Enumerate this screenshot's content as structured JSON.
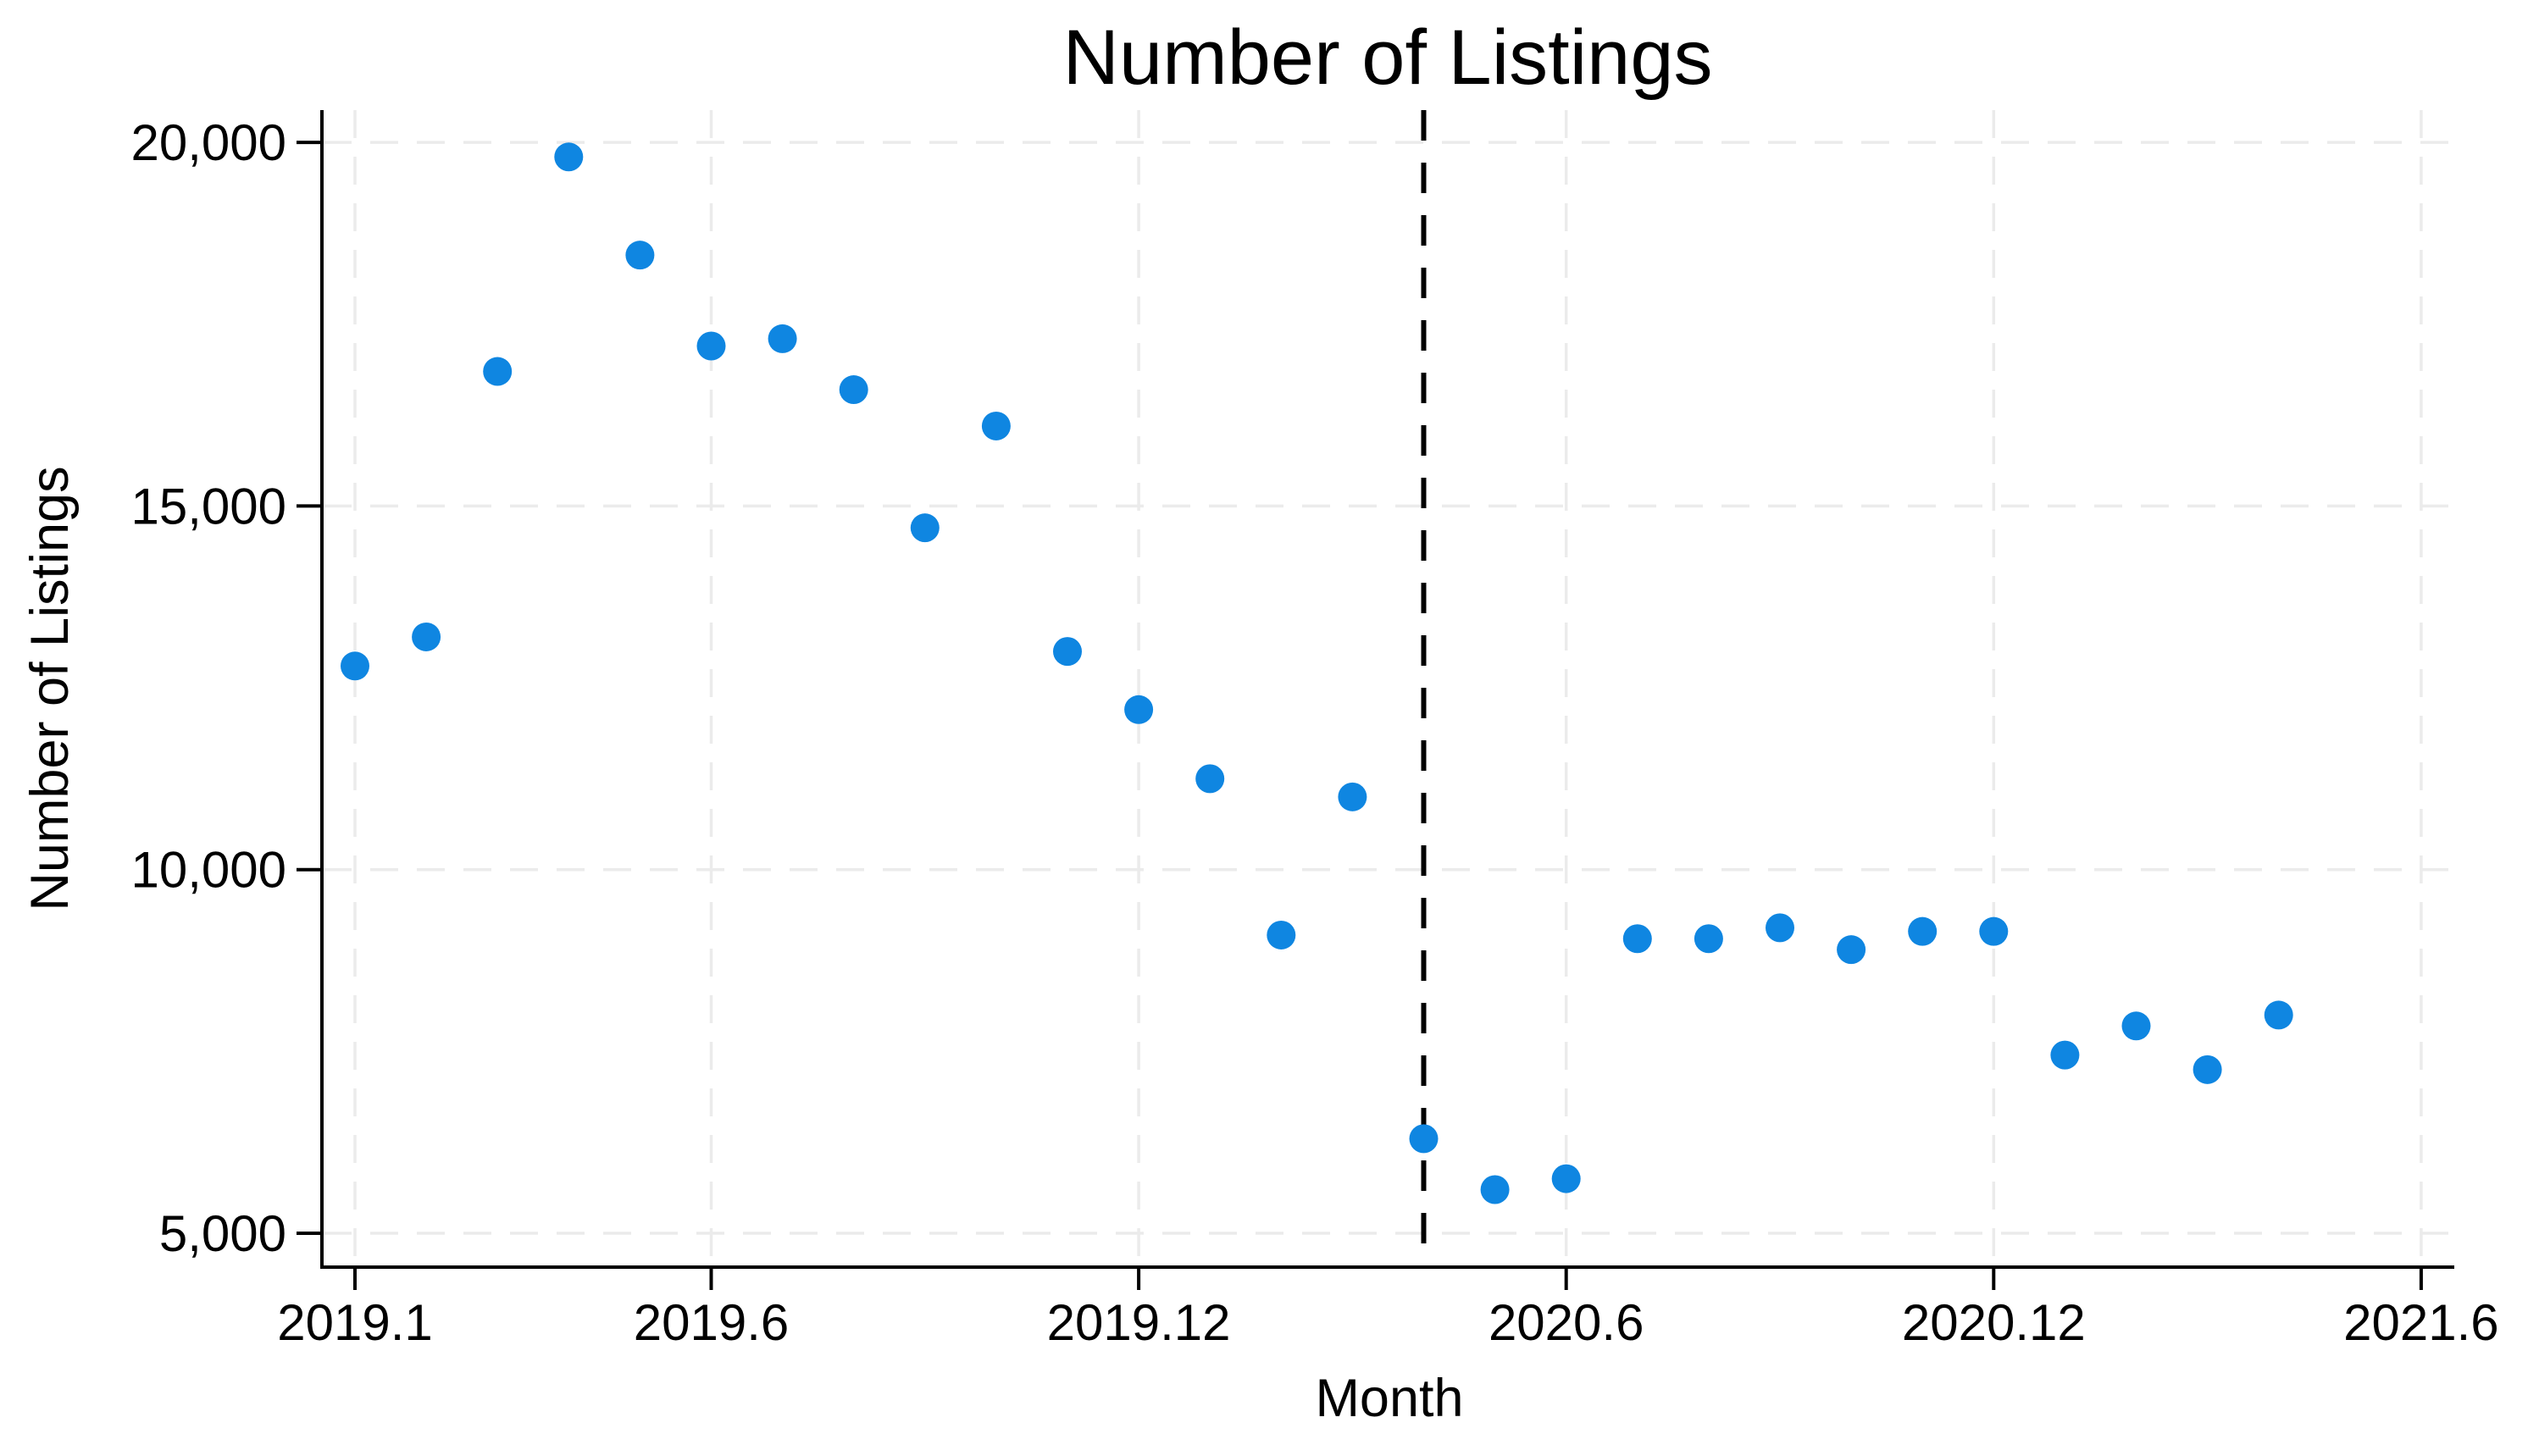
{
  "chart_data": {
    "type": "scatter",
    "title": "Number of Listings",
    "xlabel": "Month",
    "ylabel": "Number of Listings",
    "point_color": "#0f86e1",
    "grid_color": "#ebebeb",
    "axis_color": "#000000",
    "vline": {
      "month": "2020.4",
      "style": "dashed",
      "color": "#000000"
    },
    "x_ticks": [
      {
        "label": "2019.1",
        "month": "2019.1"
      },
      {
        "label": "2019.6",
        "month": "2019.6"
      },
      {
        "label": "2019.12",
        "month": "2019.12"
      },
      {
        "label": "2020.6",
        "month": "2020.6"
      },
      {
        "label": "2020.12",
        "month": "2020.12"
      },
      {
        "label": "2021.6",
        "month": "2021.6"
      }
    ],
    "y_ticks": [
      {
        "label": "5,000",
        "value": 5000
      },
      {
        "label": "10,000",
        "value": 10000
      },
      {
        "label": "15,000",
        "value": 15000
      },
      {
        "label": "20,000",
        "value": 20000
      }
    ],
    "ylim": [
      4530,
      20460
    ],
    "xlim_months": [
      "2019.1",
      "2021.6"
    ],
    "grid": true,
    "series": [
      {
        "name": "Number of Listings",
        "points": [
          {
            "month": "2019.1",
            "value": 12800
          },
          {
            "month": "2019.2",
            "value": 13200
          },
          {
            "month": "2019.3",
            "value": 16850
          },
          {
            "month": "2019.4",
            "value": 19800
          },
          {
            "month": "2019.5",
            "value": 18450
          },
          {
            "month": "2019.6",
            "value": 17200
          },
          {
            "month": "2019.7",
            "value": 17300
          },
          {
            "month": "2019.8",
            "value": 16600
          },
          {
            "month": "2019.9",
            "value": 14700
          },
          {
            "month": "2019.10",
            "value": 16100
          },
          {
            "month": "2019.11",
            "value": 13000
          },
          {
            "month": "2019.12",
            "value": 12200
          },
          {
            "month": "2020.1",
            "value": 11250
          },
          {
            "month": "2020.2",
            "value": 9100
          },
          {
            "month": "2020.3",
            "value": 11000
          },
          {
            "month": "2020.4",
            "value": 6300
          },
          {
            "month": "2020.5",
            "value": 5600
          },
          {
            "month": "2020.6",
            "value": 5750
          },
          {
            "month": "2020.7",
            "value": 9050
          },
          {
            "month": "2020.8",
            "value": 9050
          },
          {
            "month": "2020.9",
            "value": 9200
          },
          {
            "month": "2020.10",
            "value": 8900
          },
          {
            "month": "2020.11",
            "value": 9150
          },
          {
            "month": "2020.12",
            "value": 9150
          },
          {
            "month": "2021.1",
            "value": 7450
          },
          {
            "month": "2021.2",
            "value": 7850
          },
          {
            "month": "2021.3",
            "value": 7250
          },
          {
            "month": "2021.4",
            "value": 8000
          }
        ]
      }
    ]
  }
}
